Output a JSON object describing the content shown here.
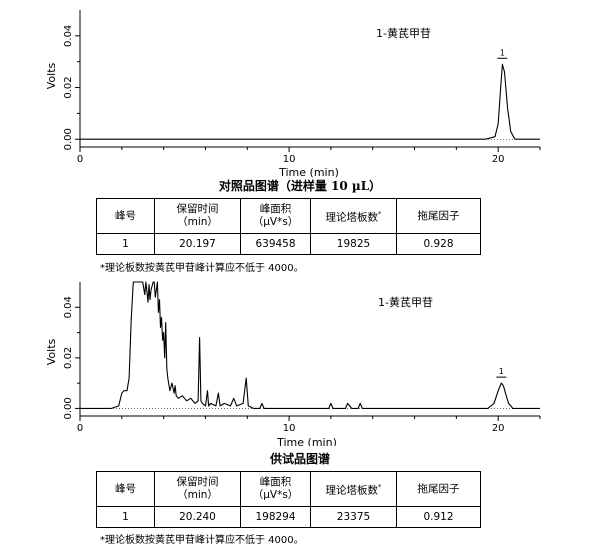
{
  "chart_data": [
    {
      "type": "line",
      "caption": "对照品图谱（进样量 10 µL）",
      "xlabel": "Time (min)",
      "ylabel": "Volts",
      "xlim": [
        0,
        22
      ],
      "ylim": [
        -0.003,
        0.05
      ],
      "xticks": [
        "0",
        "10",
        "20"
      ],
      "yticks": [
        "0.00",
        "0.02",
        "0.04"
      ],
      "annotation": "1-黄芪甲苷",
      "peak_label": "1",
      "series": [
        {
          "x": [
            0,
            2,
            5,
            10,
            15,
            19.4,
            19.85,
            20.0,
            20.1,
            20.2,
            20.3,
            20.45,
            20.6,
            20.8,
            21.2,
            22
          ],
          "y": [
            0.0,
            0.0,
            0.0,
            0.0,
            0.0,
            0.0,
            0.001,
            0.006,
            0.018,
            0.029,
            0.026,
            0.012,
            0.003,
            0.0,
            0.0,
            0.0
          ]
        }
      ]
    },
    {
      "type": "line",
      "caption": "供试品图谱",
      "xlabel": "Time (min)",
      "ylabel": "Volts",
      "xlim": [
        0,
        22
      ],
      "ylim": [
        -0.003,
        0.05
      ],
      "xticks": [
        "0",
        "10",
        "20"
      ],
      "yticks": [
        "0.00",
        "0.02",
        "0.04"
      ],
      "annotation": "1-黄芪甲苷",
      "peak_label": "1",
      "series": [
        {
          "x": [
            0,
            1.5,
            1.85,
            2.0,
            2.1,
            2.25,
            2.35,
            2.45,
            2.55,
            2.6,
            2.7,
            3.0,
            3.1,
            3.15,
            3.25,
            3.3,
            3.35,
            3.4,
            3.5,
            3.55,
            3.6,
            3.7,
            3.75,
            3.8,
            3.85,
            3.9,
            3.95,
            4.0,
            4.05,
            4.1,
            4.15,
            4.2,
            4.3,
            4.4,
            4.5,
            4.55,
            4.6,
            4.7,
            4.9,
            5.1,
            5.3,
            5.5,
            5.65,
            5.72,
            5.78,
            5.85,
            6.0,
            6.1,
            6.15,
            6.25,
            6.5,
            6.62,
            6.7,
            6.9,
            7.2,
            7.35,
            7.5,
            7.8,
            7.95,
            8.05,
            8.3,
            8.6,
            8.7,
            8.8,
            9.5,
            10.5,
            11.5,
            11.9,
            12.0,
            12.1,
            12.5,
            12.7,
            12.8,
            13.0,
            13.3,
            13.4,
            13.5,
            14.0,
            16.0,
            19.5,
            19.8,
            20.0,
            20.15,
            20.25,
            20.35,
            20.5,
            20.7,
            21.0,
            22
          ],
          "y": [
            0.0,
            0.0,
            0.001,
            0.006,
            0.007,
            0.007,
            0.012,
            0.035,
            0.05,
            0.05,
            0.05,
            0.05,
            0.045,
            0.05,
            0.042,
            0.049,
            0.043,
            0.047,
            0.05,
            0.05,
            0.044,
            0.05,
            0.038,
            0.043,
            0.032,
            0.036,
            0.027,
            0.03,
            0.02,
            0.034,
            0.016,
            0.012,
            0.007,
            0.01,
            0.006,
            0.009,
            0.005,
            0.004,
            0.005,
            0.003,
            0.004,
            0.002,
            0.003,
            0.028,
            0.003,
            0.002,
            0.001,
            0.007,
            0.001,
            0.002,
            0.001,
            0.006,
            0.001,
            0.002,
            0.001,
            0.004,
            0.001,
            0.002,
            0.012,
            0.001,
            0.0,
            0.0,
            0.002,
            0.0,
            0.0,
            0.0,
            0.0,
            0.0,
            0.002,
            0.0,
            0.0,
            0.0,
            0.002,
            0.0,
            0.0,
            0.002,
            0.0,
            0.0,
            0.0,
            0.0,
            0.002,
            0.007,
            0.01,
            0.009,
            0.006,
            0.002,
            0.0,
            0.0,
            0.0
          ]
        }
      ]
    }
  ],
  "tables": [
    {
      "headers": [
        "峰号",
        "保留时间\n（min）",
        "峰面积\n（µV*s）",
        "理论塔板数*",
        "拖尾因子"
      ],
      "row": [
        "1",
        "20.197",
        "639458",
        "19825",
        "0.928"
      ],
      "note": "*理论板数按黄芪甲苷峰计算应不低于 4000。"
    },
    {
      "headers": [
        "峰号",
        "保留时间\n（min）",
        "峰面积\n（µV*s）",
        "理论塔板数*",
        "拖尾因子"
      ],
      "row": [
        "1",
        "20.240",
        "198294",
        "23375",
        "0.912"
      ],
      "note": "*理论板数按黄芪甲苷峰计算应不低于 4000。"
    }
  ]
}
